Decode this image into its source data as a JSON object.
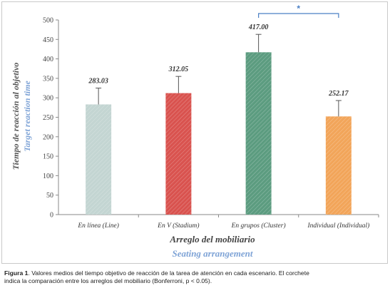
{
  "chart_data": {
    "type": "bar",
    "categories": [
      "En línea (Line)",
      "En V (Stadium)",
      "En grupos (Cluster)",
      "Individual (Individual)"
    ],
    "values": [
      283.03,
      312.05,
      417.0,
      252.17
    ],
    "value_labels": [
      "283.03",
      "312.05",
      "417.00",
      "252.17"
    ],
    "error_upper": [
      325,
      355,
      463,
      293
    ],
    "colors": [
      "#c3d5d2",
      "#d9534f",
      "#5c9c80",
      "#f2a55a"
    ],
    "ylabel": "Tiempo de reacción al objetivo",
    "ylabel_en": "Target reaction time",
    "xlabel": "Arreglo del mobiliario",
    "xlabel_en": "Seating arrangement",
    "ylim": [
      0,
      500
    ],
    "yticks": [
      "0",
      "50",
      "100",
      "150",
      "200",
      "250",
      "300",
      "350",
      "400",
      "450",
      "500"
    ],
    "significance": {
      "between": [
        2,
        3
      ],
      "label": "*"
    },
    "grid": false,
    "legend": "none"
  },
  "caption": {
    "lead": "Figura 1",
    "line1": ". Valores medios del tiempo objetivo de reacción  de la tarea de atención en cada escenario. El corchete",
    "line2": "indica la comparación entre los arreglos del mobiliario (Bonferroni, p < 0.05)."
  }
}
